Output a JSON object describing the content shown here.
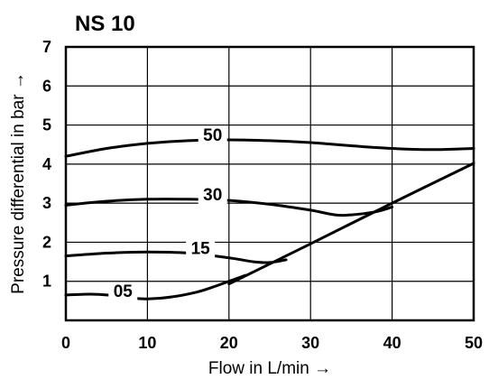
{
  "chart_data": {
    "type": "line",
    "title": "NS 10",
    "xlabel": "Flow in L/min →",
    "ylabel": "Pressure differential in bar →",
    "xlim": [
      0,
      50
    ],
    "ylim": [
      0,
      7
    ],
    "xticks": [
      "0",
      "10",
      "20",
      "30",
      "40",
      "50"
    ],
    "yticks": [
      "1",
      "2",
      "3",
      "4",
      "5",
      "6",
      "7"
    ],
    "grid": true,
    "series": [
      {
        "name": "50",
        "x": [
          0,
          5,
          10,
          15,
          20,
          25,
          30,
          35,
          40,
          45,
          50
        ],
        "y": [
          4.2,
          4.4,
          4.53,
          4.6,
          4.62,
          4.6,
          4.55,
          4.47,
          4.4,
          4.37,
          4.4
        ]
      },
      {
        "name": "30",
        "x": [
          0,
          5,
          10,
          15,
          20,
          25,
          30,
          33,
          35,
          38,
          40
        ],
        "y": [
          2.95,
          3.05,
          3.1,
          3.1,
          3.07,
          2.97,
          2.82,
          2.7,
          2.7,
          2.78,
          2.9
        ]
      },
      {
        "name": "15",
        "x": [
          0,
          5,
          10,
          15,
          20,
          23,
          25,
          27
        ],
        "y": [
          1.65,
          1.72,
          1.75,
          1.72,
          1.6,
          1.5,
          1.48,
          1.55
        ]
      },
      {
        "name": "05",
        "x": [
          0,
          3,
          5,
          8,
          10,
          13,
          16,
          18,
          20,
          22
        ],
        "y": [
          0.65,
          0.67,
          0.65,
          0.57,
          0.55,
          0.6,
          0.72,
          0.85,
          1.0,
          1.15
        ]
      },
      {
        "name": "",
        "x": [
          20,
          30,
          40,
          50
        ],
        "y": [
          0.93,
          1.96,
          3.0,
          4.02
        ]
      }
    ]
  }
}
